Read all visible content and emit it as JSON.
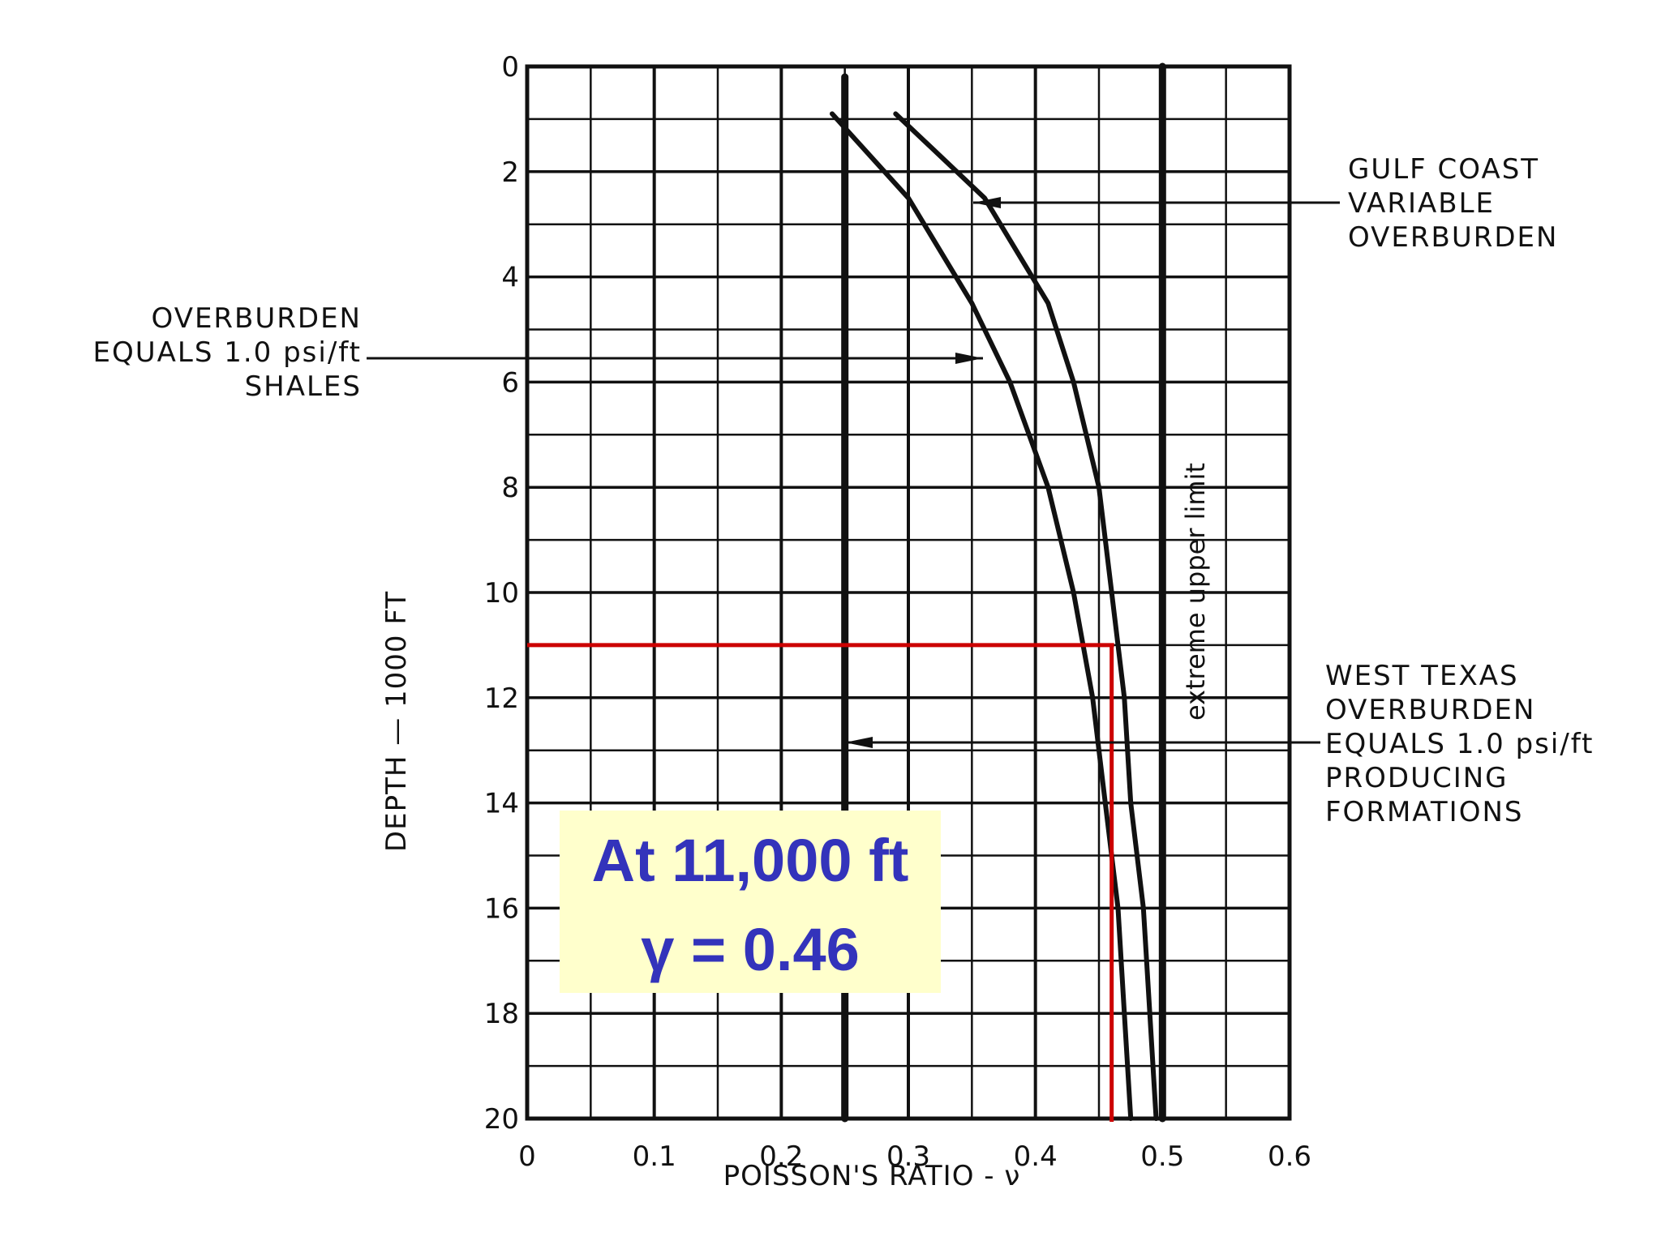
{
  "chart_data": {
    "type": "line",
    "title": "",
    "xlabel": "POISSON'S RATIO - ν",
    "ylabel": "DEPTH — 1000 FT",
    "xlim": [
      0,
      0.6
    ],
    "ylim": [
      0,
      20
    ],
    "y_inverted": true,
    "x_ticks": [
      "0",
      "0.1",
      "0.2",
      "0.3",
      "0.4",
      "0.5",
      "0.6"
    ],
    "y_ticks": [
      "0",
      "2",
      "4",
      "6",
      "8",
      "10",
      "12",
      "14",
      "16",
      "18",
      "20"
    ],
    "grid": true,
    "series": [
      {
        "name": "OVERBURDEN EQUALS 1.0 psi/ft SHALES",
        "points": [
          [
            0.24,
            0.9
          ],
          [
            0.3,
            2.5
          ],
          [
            0.35,
            4.5
          ],
          [
            0.38,
            6
          ],
          [
            0.41,
            8
          ],
          [
            0.43,
            10
          ],
          [
            0.445,
            12
          ],
          [
            0.455,
            14
          ],
          [
            0.465,
            16
          ],
          [
            0.47,
            18
          ],
          [
            0.475,
            20
          ]
        ]
      },
      {
        "name": "GULF COAST VARIABLE OVERBURDEN",
        "points": [
          [
            0.29,
            0.9
          ],
          [
            0.36,
            2.5
          ],
          [
            0.41,
            4.5
          ],
          [
            0.43,
            6
          ],
          [
            0.45,
            8
          ],
          [
            0.46,
            10
          ],
          [
            0.47,
            12
          ],
          [
            0.475,
            14
          ],
          [
            0.485,
            16
          ],
          [
            0.49,
            18
          ],
          [
            0.495,
            20
          ]
        ]
      },
      {
        "name": "WEST TEXAS OVERBURDEN EQUALS 1.0 psi/ft PRODUCING FORMATIONS",
        "points": [
          [
            0.25,
            0.2
          ],
          [
            0.25,
            20
          ]
        ]
      },
      {
        "name": "extreme upper limit",
        "points": [
          [
            0.5,
            0
          ],
          [
            0.5,
            20
          ]
        ]
      }
    ],
    "annotations": {
      "gulf_coast": [
        "GULF COAST",
        "VARIABLE",
        "OVERBURDEN"
      ],
      "shales": [
        "OVERBURDEN",
        "EQUALS 1.0 psi/ft",
        "SHALES"
      ],
      "west_texas": [
        "WEST TEXAS",
        "OVERBURDEN",
        "EQUALS 1.0 psi/ft",
        "PRODUCING",
        "FORMATIONS"
      ],
      "upper_limit": "extreme upper limit"
    },
    "highlight": {
      "depth": 11,
      "value": 0.46,
      "color": "#cc0000",
      "callout_lines": [
        "At 11,000 ft",
        "γ = 0.46"
      ],
      "callout_bg": "#ffffcc",
      "callout_color": "#3333bb"
    }
  }
}
